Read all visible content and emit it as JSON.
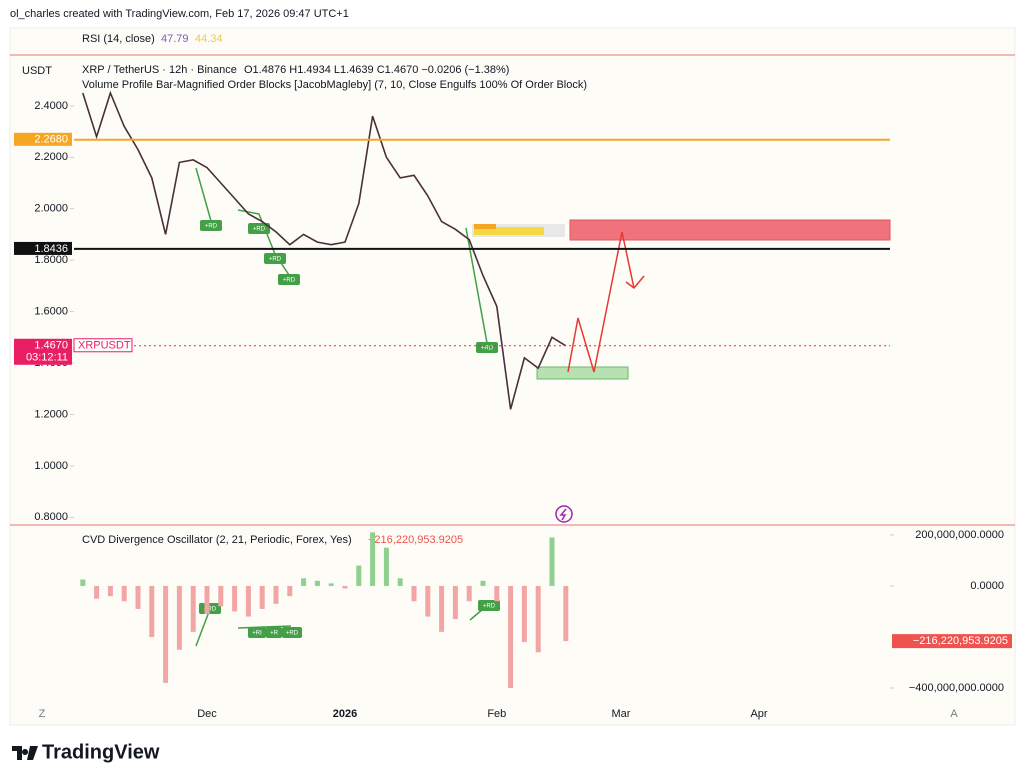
{
  "header": "ol_charles created with TradingView.com, Feb 17, 2026 09:47 UTC+1",
  "rsi": {
    "label": "RSI (14, close)",
    "values": [
      47.79,
      44.34
    ],
    "colors": [
      "#7e57c2",
      "#f2c94c"
    ]
  },
  "chart_data": [
    {
      "type": "line",
      "title": "XRP / TetherUS · 12h · Binance",
      "subtitle": "O1.4876 H1.4934 L1.4639 C1.4670 −0.0206 (−1.38%)",
      "indicator": "Volume Profile Bar-Magnified Order Blocks [JacobMagleby] (7, 10, Close Engulfs 100% Of Order Block)",
      "y_label": "USDT",
      "color": "#4a2f3a",
      "grid": false,
      "categories": [
        null,
        null,
        null,
        null,
        null,
        null,
        null,
        null,
        null,
        null,
        null,
        null,
        null,
        "Dec",
        null,
        null,
        null,
        null,
        null,
        null,
        null,
        null,
        null,
        "2026",
        null,
        null,
        null,
        null,
        null,
        null,
        null,
        null,
        null,
        null,
        "Feb",
        null,
        null,
        null,
        null,
        null,
        null,
        null,
        null,
        "Mar",
        null,
        null,
        null,
        null,
        null,
        null,
        null,
        null,
        null,
        "Apr",
        null,
        null,
        null,
        null,
        null,
        null,
        null,
        null,
        null
      ],
      "values": [
        null,
        null,
        null,
        null,
        2.45,
        2.28,
        2.45,
        2.32,
        2.23,
        2.12,
        1.9,
        2.18,
        2.19,
        2.16,
        2.1,
        2.04,
        1.98,
        1.95,
        1.91,
        1.86,
        1.9,
        1.87,
        1.86,
        1.87,
        2.02,
        2.36,
        2.2,
        2.12,
        2.13,
        2.05,
        1.95,
        1.92,
        1.88,
        1.74,
        1.62,
        1.22,
        1.42,
        1.38,
        1.5,
        1.467,
        null,
        null,
        null,
        null,
        null,
        null,
        null,
        null,
        null,
        null,
        null,
        null,
        null,
        null,
        null,
        null,
        null,
        null,
        null,
        null,
        null,
        null,
        null
      ],
      "ylim": [
        0.77,
        2.59
      ],
      "yticks": [
        {
          "value": 2.4,
          "label": "2.4000"
        },
        {
          "value": 2.2,
          "label": "2.2000"
        },
        {
          "value": 2.0,
          "label": "2.0000"
        },
        {
          "value": 1.8,
          "label": "1.8000"
        },
        {
          "value": 1.6,
          "label": "1.6000"
        },
        {
          "value": 1.4,
          "label": "1.4000"
        },
        {
          "value": 1.2,
          "label": "1.2000"
        },
        {
          "value": 1.0,
          "label": "1.0000"
        },
        {
          "value": 0.8,
          "label": "0.8000"
        }
      ],
      "price_lines": [
        {
          "value": 2.268,
          "label": "2.2680",
          "color": "#f5a623"
        },
        {
          "value": 1.8436,
          "label": "1.8436",
          "color": "#111111"
        },
        {
          "value": 1.467,
          "label": "1.4670",
          "color": "#e91e63",
          "symbol": "XRPUSDT",
          "countdown": "03:12:11"
        }
      ],
      "annotations": [
        "+RD",
        "+RD",
        "+RD",
        "+RD",
        "+RD"
      ]
    },
    {
      "type": "bar",
      "title": "CVD Divergence Oscillator (2, 21, Periodic, Forex, Yes)",
      "last_value": {
        "value": -216220953.9205,
        "label": "−216,220,953.9205"
      },
      "colors": {
        "positive": "#8fd08f",
        "negative": "#f2a5a5"
      },
      "values": [
        null,
        null,
        null,
        null,
        25000000,
        -50000000,
        -40000000,
        -60000000,
        -90000000,
        -200000000,
        -380000000,
        -250000000,
        -180000000,
        -110000000,
        -80000000,
        -100000000,
        -120000000,
        -90000000,
        -70000000,
        -40000000,
        30000000,
        20000000,
        10000000,
        -10000000,
        80000000,
        210000000,
        150000000,
        30000000,
        -60000000,
        -120000000,
        -180000000,
        -130000000,
        -60000000,
        20000000,
        -60000000,
        -400000000,
        -220000000,
        -260000000,
        190000000,
        -216220953.9205,
        null,
        null,
        null,
        null,
        null,
        null,
        null,
        null,
        null,
        null,
        null,
        null,
        null,
        null,
        null,
        null,
        null,
        null,
        null,
        null,
        null,
        null,
        null
      ],
      "ylim": [
        -447000000,
        231000000
      ],
      "yticks": [
        {
          "value": 200000000,
          "label": "200,000,000.0000"
        },
        {
          "value": 0,
          "label": "0.0000"
        },
        {
          "value": -400000000,
          "label": "−400,000,000.0000"
        }
      ],
      "annotations": [
        "+RD",
        "+RI",
        "+R",
        "+RD",
        "+RD"
      ]
    }
  ],
  "corner_buttons": [
    "Z",
    "A"
  ],
  "footer": "TradingView"
}
